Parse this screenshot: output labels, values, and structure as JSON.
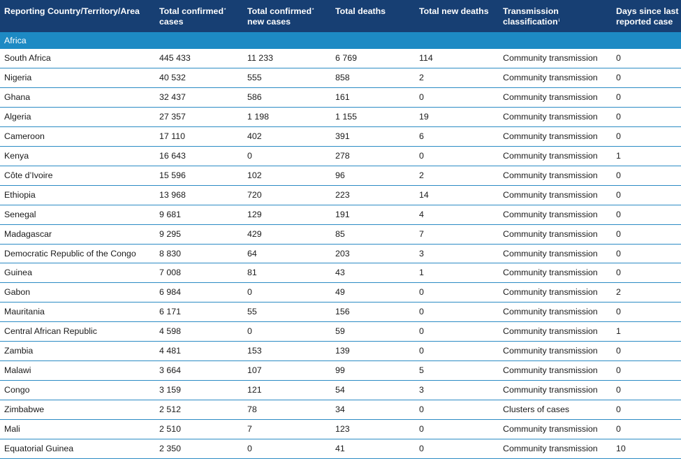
{
  "header": {
    "country": "Reporting Country/Territory/Area",
    "cases_line1": "Total confirmed",
    "cases_line2": "cases",
    "cases_mark": "*",
    "newcases_line1": "Total confirmed",
    "newcases_line2": "new cases",
    "newcases_mark": "*",
    "deaths": "Total deaths",
    "newdeaths": "Total new deaths",
    "trans_line1": "Transmission",
    "trans_line2": "classification",
    "trans_mark": "i",
    "days_line1": "Days since last",
    "days_line2": "reported case"
  },
  "region": "Africa",
  "rows": [
    {
      "country": "South Africa",
      "cases": "445 433",
      "new_cases": "11 233",
      "deaths": "6 769",
      "new_deaths": "114",
      "transmission": "Community transmission",
      "days": "0"
    },
    {
      "country": "Nigeria",
      "cases": "40 532",
      "new_cases": "555",
      "deaths": "858",
      "new_deaths": "2",
      "transmission": "Community transmission",
      "days": "0"
    },
    {
      "country": "Ghana",
      "cases": "32 437",
      "new_cases": "586",
      "deaths": "161",
      "new_deaths": "0",
      "transmission": "Community transmission",
      "days": "0"
    },
    {
      "country": "Algeria",
      "cases": "27 357",
      "new_cases": "1 198",
      "deaths": "1 155",
      "new_deaths": "19",
      "transmission": "Community transmission",
      "days": "0"
    },
    {
      "country": "Cameroon",
      "cases": "17 110",
      "new_cases": "402",
      "deaths": "391",
      "new_deaths": "6",
      "transmission": "Community transmission",
      "days": "0"
    },
    {
      "country": "Kenya",
      "cases": "16 643",
      "new_cases": "0",
      "deaths": "278",
      "new_deaths": "0",
      "transmission": "Community transmission",
      "days": "1"
    },
    {
      "country": "Côte d’Ivoire",
      "cases": "15 596",
      "new_cases": "102",
      "deaths": "96",
      "new_deaths": "2",
      "transmission": "Community transmission",
      "days": "0"
    },
    {
      "country": "Ethiopia",
      "cases": "13 968",
      "new_cases": "720",
      "deaths": "223",
      "new_deaths": "14",
      "transmission": "Community transmission",
      "days": "0"
    },
    {
      "country": "Senegal",
      "cases": "9 681",
      "new_cases": "129",
      "deaths": "191",
      "new_deaths": "4",
      "transmission": "Community transmission",
      "days": "0"
    },
    {
      "country": "Madagascar",
      "cases": "9 295",
      "new_cases": "429",
      "deaths": "85",
      "new_deaths": "7",
      "transmission": "Community transmission",
      "days": "0"
    },
    {
      "country": "Democratic Republic of the Congo",
      "cases": "8 830",
      "new_cases": "64",
      "deaths": "203",
      "new_deaths": "3",
      "transmission": "Community transmission",
      "days": "0"
    },
    {
      "country": "Guinea",
      "cases": "7 008",
      "new_cases": "81",
      "deaths": "43",
      "new_deaths": "1",
      "transmission": "Community transmission",
      "days": "0"
    },
    {
      "country": "Gabon",
      "cases": "6 984",
      "new_cases": "0",
      "deaths": "49",
      "new_deaths": "0",
      "transmission": "Community transmission",
      "days": "2"
    },
    {
      "country": "Mauritania",
      "cases": "6 171",
      "new_cases": "55",
      "deaths": "156",
      "new_deaths": "0",
      "transmission": "Community transmission",
      "days": "0"
    },
    {
      "country": "Central African Republic",
      "cases": "4 598",
      "new_cases": "0",
      "deaths": "59",
      "new_deaths": "0",
      "transmission": "Community transmission",
      "days": "1"
    },
    {
      "country": "Zambia",
      "cases": "4 481",
      "new_cases": "153",
      "deaths": "139",
      "new_deaths": "0",
      "transmission": "Community transmission",
      "days": "0"
    },
    {
      "country": "Malawi",
      "cases": "3 664",
      "new_cases": "107",
      "deaths": "99",
      "new_deaths": "5",
      "transmission": "Community transmission",
      "days": "0"
    },
    {
      "country": "Congo",
      "cases": "3 159",
      "new_cases": "121",
      "deaths": "54",
      "new_deaths": "3",
      "transmission": "Community transmission",
      "days": "0"
    },
    {
      "country": "Zimbabwe",
      "cases": "2 512",
      "new_cases": "78",
      "deaths": "34",
      "new_deaths": "0",
      "transmission": "Clusters of cases",
      "days": "0"
    },
    {
      "country": "Mali",
      "cases": "2 510",
      "new_cases": "7",
      "deaths": "123",
      "new_deaths": "0",
      "transmission": "Community transmission",
      "days": "0"
    },
    {
      "country": "Equatorial Guinea",
      "cases": "2 350",
      "new_cases": "0",
      "deaths": "41",
      "new_deaths": "0",
      "transmission": "Community transmission",
      "days": "10"
    }
  ],
  "colors": {
    "header_bg": "#173f73",
    "region_bg": "#1d8ac4",
    "row_divider": "#2b8bc4"
  }
}
